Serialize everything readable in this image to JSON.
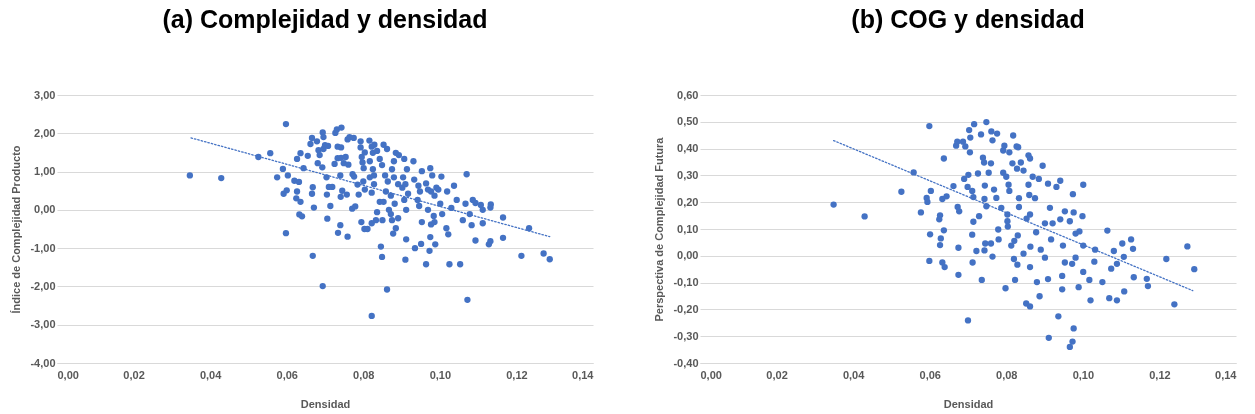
{
  "chart_data": [
    {
      "type": "scatter",
      "title": "(a) Complejidad y densidad",
      "xlabel": "Densidad",
      "ylabel": "Índice de Complejidad Producto",
      "grid": "y",
      "xlim": [
        0,
        0.14
      ],
      "xticks": [
        {
          "value": 0,
          "label": "0,00"
        },
        {
          "value": 0.02,
          "label": "0,02"
        },
        {
          "value": 0.04,
          "label": "0,04"
        },
        {
          "value": 0.06,
          "label": "0,06"
        },
        {
          "value": 0.08,
          "label": "0,08"
        },
        {
          "value": 0.1,
          "label": "0,10"
        },
        {
          "value": 0.12,
          "label": "0,12"
        },
        {
          "value": 0.14,
          "label": "0,14"
        }
      ],
      "ylim": [
        -4,
        3
      ],
      "yticks": [
        {
          "value": -4,
          "label": "-4,00"
        },
        {
          "value": -3,
          "label": "-3,00"
        },
        {
          "value": -2,
          "label": "-2,00"
        },
        {
          "value": -1,
          "label": "-1,00"
        },
        {
          "value": 0,
          "label": "0,00"
        },
        {
          "value": 1,
          "label": "1,00"
        },
        {
          "value": 2,
          "label": "2,00"
        },
        {
          "value": 3,
          "label": "3,00"
        }
      ],
      "series": [
        {
          "type": "scatter",
          "marker": "circle",
          "color": "#4472c4",
          "x": [
            0.0347,
            0.0429,
            0.0526,
            0.0557,
            0.0598,
            0.0598,
            0.0592,
            0.06,
            0.059,
            0.0575,
            0.0603,
            0.062,
            0.0632,
            0.0627,
            0.0625,
            0.0636,
            0.0633,
            0.064,
            0.0627,
            0.0636,
            0.0644,
            0.0655,
            0.0662,
            0.0666,
            0.0668,
            0.0666,
            0.0671,
            0.0668,
            0.0679,
            0.0683,
            0.0686,
            0.0681,
            0.0694,
            0.0696,
            0.0696,
            0.0693,
            0.07,
            0.0708,
            0.0704,
            0.0705,
            0.071,
            0.0719,
            0.0706,
            0.0694,
            0.0714,
            0.0725,
            0.0727,
            0.0731,
            0.0743,
            0.0733,
            0.0742,
            0.0733,
            0.0742,
            0.074,
            0.0741,
            0.0745,
            0.0734,
            0.074,
            0.0749,
            0.0754,
            0.0761,
            0.0759,
            0.0764,
            0.0775,
            0.0757,
            0.0759,
            0.0772,
            0.0776,
            0.0771,
            0.0779,
            0.0785,
            0.0788,
            0.0793,
            0.0793,
            0.0796,
            0.0798,
            0.0801,
            0.0804,
            0.08,
            0.0804,
            0.0795,
            0.0803,
            0.0811,
            0.0816,
            0.0822,
            0.0829,
            0.0825,
            0.0836,
            0.0817,
            0.0825,
            0.0817,
            0.0828,
            0.0822,
            0.0828,
            0.0822,
            0.0822,
            0.0836,
            0.0833,
            0.0843,
            0.0853,
            0.0846,
            0.0849,
            0.085,
            0.0843,
            0.0849,
            0.0853,
            0.0862,
            0.0857,
            0.0864,
            0.0859,
            0.0872,
            0.0862,
            0.0867,
            0.0872,
            0.0875,
            0.0878,
            0.088,
            0.0875,
            0.0885,
            0.0893,
            0.088,
            0.0891,
            0.0902,
            0.0882,
            0.0891,
            0.0885,
            0.0907,
            0.0914,
            0.0904,
            0.091,
            0.0917,
            0.0912,
            0.0907,
            0.0912,
            0.091,
            0.0931,
            0.0933,
            0.0944,
            0.0942,
            0.0946,
            0.0935,
            0.0951,
            0.0953,
            0.0953,
            0.0948,
            0.0964,
            0.0969,
            0.0964,
            0.0975,
            0.098,
            0.0977,
            0.0986,
            0.0969,
            0.0984,
            0.0977,
            0.0986,
            0.0975,
            0.0973,
            0.0988,
            0.0991,
            0.0996,
            0.1004,
            0.1001,
            0.1006,
            0.1019,
            0.1017,
            0.1022,
            0.1025,
            0.1037,
            0.103,
            0.1044,
            0.1053,
            0.106,
            0.107,
            0.1067,
            0.1072,
            0.1078,
            0.1083,
            0.1086,
            0.1093,
            0.1093,
            0.1107,
            0.1112,
            0.1112,
            0.1128,
            0.1132,
            0.1132,
            0.1133,
            0.1165,
            0.1165,
            0.1213,
            0.1233,
            0.1271,
            0.1287
          ],
          "values": [
            0.9,
            0.83,
            1.38,
            1.48,
            2.24,
            -0.61,
            0.42,
            0.51,
            1.07,
            0.85,
            0.9,
            0.76,
            0.73,
            0.48,
            0.3,
            0.21,
            -0.12,
            -0.17,
            1.33,
            1.48,
            1.09,
            1.41,
            1.72,
            1.88,
            0.59,
            0.42,
            0.06,
            -1.2,
            1.79,
            1.56,
            1.43,
            1.22,
            2.02,
            1.9,
            1.59,
            1.11,
            1.69,
            1.67,
            0.85,
            0.4,
            0.6,
            0.6,
            -0.23,
            -1.99,
            0.1,
            1.2,
            2.01,
            2.1,
            2.15,
            1.65,
            1.63,
            1.35,
            1.36,
            0.9,
            0.34,
            0.5,
            -0.6,
            -0.4,
            1.22,
            1.38,
            1.18,
            1.84,
            1.9,
            1.88,
            0.4,
            -0.7,
            0.93,
            0.87,
            0.03,
            0.09,
            0.66,
            0.4,
            1.79,
            1.63,
            1.38,
            1.24,
            1.09,
            1.5,
            0.74,
            0.53,
            -0.32,
            -0.5,
            -0.5,
            1.81,
            1.65,
            1.7,
            1.49,
            1.54,
            1.27,
            1.06,
            0.85,
            0.67,
            0.45,
            0.9,
            -2.77,
            -0.35,
            -0.06,
            -0.27,
            0.21,
            0.21,
            -0.96,
            -1.23,
            -0.27,
            1.33,
            1.17,
            1.7,
            1.59,
            0.9,
            0.74,
            0.48,
            0.37,
            -2.08,
            0,
            -0.11,
            -0.27,
            -0.62,
            1.27,
            1.06,
            1.49,
            1.43,
            0.85,
            0.67,
            0.58,
            0.16,
            -0.22,
            -0.48,
            1.33,
            1.06,
            0.85,
            0.67,
            0.42,
            0,
            0.26,
            -0.77,
            -1.3,
            1.27,
            0.79,
            0.63,
            0.26,
            0.1,
            -1,
            -0.89,
            -0.32,
            1.01,
            0.48,
            0.69,
            0.53,
            -1.42,
            1.09,
            0.9,
            0.48,
            0.37,
            0,
            -0.16,
            -0.38,
            -0.32,
            -0.71,
            -1.07,
            -0.9,
            0.58,
            0.53,
            0.87,
            0.16,
            -0.11,
            0.48,
            -0.48,
            -0.64,
            -1.42,
            0.63,
            0.05,
            0.26,
            -1.42,
            -0.27,
            0.93,
            0.16,
            -2.35,
            -0.11,
            -0.4,
            0.26,
            0.18,
            -0.8,
            0.13,
            0,
            -0.35,
            -0.9,
            -0.82,
            0.06,
            0.14,
            -0.2,
            -0.73,
            -1.2,
            -0.48,
            -1.14,
            -1.29
          ]
        },
        {
          "type": "line",
          "color": "#4472c4",
          "line_style": "dotted",
          "x": [
            0.035,
            0.1287
          ],
          "values": [
            1.88,
            -0.7
          ]
        }
      ]
    },
    {
      "type": "scatter",
      "title": "(b) COG y densidad",
      "xlabel": "Densidad",
      "ylabel": "Perspectiva de Complejidad Futura",
      "grid": "y",
      "xlim": [
        0,
        0.14
      ],
      "xticks": [
        {
          "value": 0,
          "label": "0,00"
        },
        {
          "value": 0.02,
          "label": "0,02"
        },
        {
          "value": 0.04,
          "label": "0,04"
        },
        {
          "value": 0.06,
          "label": "0,06"
        },
        {
          "value": 0.08,
          "label": "0,08"
        },
        {
          "value": 0.1,
          "label": "0,10"
        },
        {
          "value": 0.12,
          "label": "0,12"
        },
        {
          "value": 0.14,
          "label": "0,14"
        }
      ],
      "ylim": [
        -0.4,
        0.6
      ],
      "yticks": [
        {
          "value": -0.4,
          "label": "-0,40"
        },
        {
          "value": -0.3,
          "label": "-0,30"
        },
        {
          "value": -0.2,
          "label": "-0,20"
        },
        {
          "value": -0.1,
          "label": "-0,10"
        },
        {
          "value": 0,
          "label": "0,00"
        },
        {
          "value": 0.1,
          "label": "0,10"
        },
        {
          "value": 0.2,
          "label": "0,20"
        },
        {
          "value": 0.3,
          "label": "0,30"
        },
        {
          "value": 0.4,
          "label": "0,40"
        },
        {
          "value": 0.5,
          "label": "0,50"
        },
        {
          "value": 0.6,
          "label": "0,60"
        }
      ],
      "series": [
        {
          "type": "scatter",
          "marker": "circle",
          "color": "#4472c4",
          "x": [
            0.0349,
            0.043,
            0.0526,
            0.0558,
            0.0599,
            0.0599,
            0.0603,
            0.0592,
            0.0594,
            0.0577,
            0.0601,
            0.0627,
            0.0625,
            0.0633,
            0.0644,
            0.0637,
            0.0637,
            0.0629,
            0.0627,
            0.0633,
            0.0639,
            0.0662,
            0.0669,
            0.0672,
            0.0673,
            0.0677,
            0.0675,
            0.0675,
            0.0687,
            0.0693,
            0.069,
            0.0701,
            0.0699,
            0.0703,
            0.0706,
            0.0705,
            0.0716,
            0.0711,
            0.0714,
            0.0711,
            0.0714,
            0.0712,
            0.07,
            0.0722,
            0.0726,
            0.0729,
            0.0734,
            0.0739,
            0.0736,
            0.0742,
            0.0744,
            0.0743,
            0.0748,
            0.0748,
            0.0754,
            0.0743,
            0.0745,
            0.076,
            0.0761,
            0.0764,
            0.0764,
            0.076,
            0.0768,
            0.0776,
            0.0774,
            0.0779,
            0.078,
            0.0787,
            0.0792,
            0.0795,
            0.0792,
            0.08,
            0.0798,
            0.0803,
            0.0803,
            0.0806,
            0.0808,
            0.0804,
            0.0808,
            0.0816,
            0.0818,
            0.0827,
            0.0831,
            0.0813,
            0.0821,
            0.0823,
            0.082,
            0.0828,
            0.0833,
            0.0833,
            0.083,
            0.0829,
            0.0838,
            0.0845,
            0.0845,
            0.0853,
            0.0852,
            0.0858,
            0.0862,
            0.0858,
            0.086,
            0.0862,
            0.0863,
            0.0862,
            0.0862,
            0.0869,
            0.0875,
            0.0878,
            0.088,
            0.0885,
            0.0887,
            0.089,
            0.0895,
            0.0901,
            0.0901,
            0.0909,
            0.0909,
            0.0911,
            0.0914,
            0.0917,
            0.0921,
            0.0931,
            0.0936,
            0.0941,
            0.0941,
            0.0946,
            0.0946,
            0.0948,
            0.0953,
            0.0953,
            0.0966,
            0.0972,
            0.0974,
            0.0976,
            0.0966,
            0.0973,
            0.0976,
            0.0981,
            0.0981,
            0.0989,
            0.0991,
            0.0999,
            0.1001,
            0.1001,
            0.1001,
            0.1017,
            0.102,
            0.103,
            0.1032,
            0.1051,
            0.1064,
            0.1069,
            0.1074,
            0.1081,
            0.1089,
            0.1089,
            0.1103,
            0.1107,
            0.1108,
            0.1126,
            0.1131,
            0.1133,
            0.1167,
            0.117,
            0.1218,
            0.1239,
            0.1273,
            0.1291
          ],
          "values": [
            0.191,
            0.147,
            0.239,
            0.311,
            0.484,
            -0.019,
            0.242,
            0.216,
            0.201,
            0.162,
            0.08,
            0.151,
            0.136,
            0.212,
            0.222,
            0.363,
            0.095,
            0.065,
            0.04,
            -0.025,
            -0.042,
            0.26,
            0.411,
            0.426,
            0.182,
            0.166,
            0.03,
            -0.071,
            0.426,
            0.408,
            0.287,
            0.302,
            0.257,
            0.469,
            0.441,
            0.386,
            0.491,
            0.242,
            0.219,
            0.079,
            0.127,
            -0.025,
            -0.241,
            0.018,
            0.307,
            0.148,
            0.453,
            0.366,
            -0.09,
            0.348,
            0.262,
            0.212,
            0.499,
            0.185,
            0.31,
            0.02,
            0.046,
            0.345,
            0.464,
            0.431,
            -0.003,
            0.046,
            0.247,
            0.456,
            0.216,
            0.098,
            0.061,
            0.179,
            0.393,
            0.411,
            0.31,
            0.295,
            -0.121,
            0.154,
            0.129,
            0.265,
            0.242,
            0.109,
            0.386,
            0.345,
            0.449,
            0.408,
            0.405,
            0.038,
            0.056,
            -0.09,
            -0.012,
            0.325,
            0.215,
            0.182,
            0.076,
            -0.033,
            0.348,
            0.318,
            0.008,
            0.139,
            -0.178,
            0.375,
            0.363,
            0.265,
            0.227,
            0.154,
            0.034,
            -0.042,
            -0.189,
            0.295,
            0.215,
            0.088,
            -0.098,
            0.287,
            -0.151,
            0.023,
            0.336,
            -0.007,
            0.121,
            0.269,
            -0.087,
            -0.306,
            0.179,
            0.061,
            0.121,
            0.257,
            -0.226,
            0.28,
            0.136,
            -0.075,
            -0.125,
            0.038,
            0.166,
            -0.025,
            0.129,
            -0.03,
            0.23,
            -0.271,
            -0.34,
            -0.32,
            0.162,
            0.083,
            -0.007,
            -0.117,
            0.091,
            0.148,
            0.265,
            -0.06,
            0.038,
            -0.09,
            -0.166,
            -0.022,
            0.023,
            -0.098,
            0.094,
            -0.158,
            -0.048,
            0.018,
            -0.166,
            -0.03,
            0.046,
            -0.004,
            -0.133,
            0.061,
            0.026,
            -0.08,
            -0.086,
            -0.113,
            -0.012,
            -0.181,
            0.035,
            -0.05
          ]
        },
        {
          "type": "line",
          "color": "#4472c4",
          "line_style": "dotted",
          "x": [
            0.0349,
            0.1287
          ],
          "values": [
            0.43,
            -0.13
          ]
        }
      ]
    }
  ]
}
